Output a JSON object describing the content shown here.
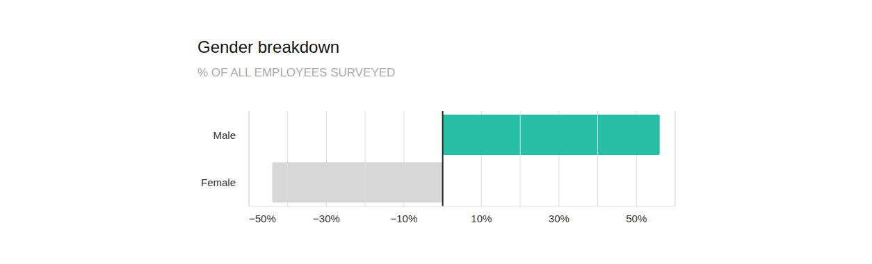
{
  "chart_data": {
    "type": "bar",
    "orientation": "horizontal",
    "title": "Gender breakdown",
    "subtitle": "% OF ALL EMPLOYEES SURVEYED",
    "categories": [
      "Male",
      "Female"
    ],
    "values": [
      56,
      -44
    ],
    "colors": [
      "#26bea6",
      "#d7d7d7"
    ],
    "xlim": [
      -50,
      60
    ],
    "xticks": [
      {
        "value": -50,
        "label": "−50%"
      },
      {
        "value": -30,
        "label": "−30%"
      },
      {
        "value": -10,
        "label": "−10%"
      },
      {
        "value": 10,
        "label": "10%"
      },
      {
        "value": 30,
        "label": "30%"
      },
      {
        "value": 50,
        "label": "50%"
      }
    ],
    "grid": true
  }
}
